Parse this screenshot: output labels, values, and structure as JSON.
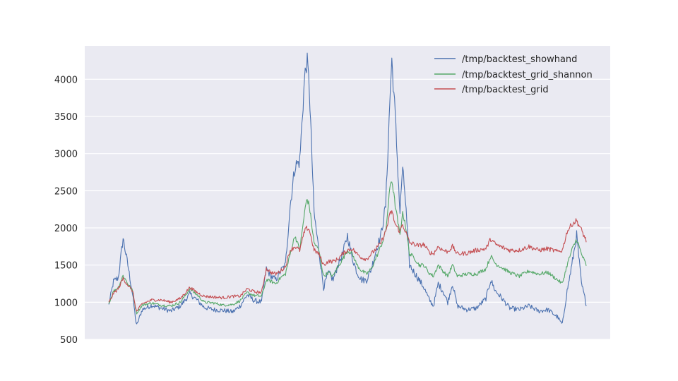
{
  "chart_data": {
    "type": "line",
    "title": "",
    "xlabel": "",
    "ylabel": "",
    "x_range": [
      0,
      1
    ],
    "ylim": [
      500,
      4450
    ],
    "yticks": [
      500,
      1000,
      1500,
      2000,
      2500,
      3000,
      3500,
      4000
    ],
    "ytick_labels": [
      "500",
      "1000",
      "1500",
      "2000",
      "2500",
      "3000",
      "3500",
      "4000"
    ],
    "grid": true,
    "legend_position": "top-right",
    "series": [
      {
        "name": "/tmp/backtest_showhand",
        "color": "#4c72b0",
        "points": [
          [
            0.0,
            960
          ],
          [
            0.01,
            1280
          ],
          [
            0.02,
            1330
          ],
          [
            0.03,
            1860
          ],
          [
            0.04,
            1500
          ],
          [
            0.05,
            1100
          ],
          [
            0.058,
            680
          ],
          [
            0.07,
            900
          ],
          [
            0.09,
            960
          ],
          [
            0.11,
            920
          ],
          [
            0.13,
            880
          ],
          [
            0.15,
            950
          ],
          [
            0.17,
            1110
          ],
          [
            0.185,
            1030
          ],
          [
            0.2,
            930
          ],
          [
            0.22,
            900
          ],
          [
            0.24,
            890
          ],
          [
            0.26,
            870
          ],
          [
            0.275,
            950
          ],
          [
            0.29,
            1100
          ],
          [
            0.305,
            1020
          ],
          [
            0.32,
            1000
          ],
          [
            0.33,
            1450
          ],
          [
            0.34,
            1350
          ],
          [
            0.35,
            1300
          ],
          [
            0.36,
            1420
          ],
          [
            0.37,
            1500
          ],
          [
            0.38,
            2300
          ],
          [
            0.39,
            2830
          ],
          [
            0.4,
            2900
          ],
          [
            0.41,
            4000
          ],
          [
            0.415,
            4260
          ],
          [
            0.42,
            3900
          ],
          [
            0.43,
            2200
          ],
          [
            0.44,
            1700
          ],
          [
            0.45,
            1200
          ],
          [
            0.46,
            1400
          ],
          [
            0.47,
            1300
          ],
          [
            0.48,
            1500
          ],
          [
            0.49,
            1650
          ],
          [
            0.5,
            1900
          ],
          [
            0.51,
            1600
          ],
          [
            0.52,
            1400
          ],
          [
            0.53,
            1300
          ],
          [
            0.54,
            1300
          ],
          [
            0.55,
            1450
          ],
          [
            0.56,
            1700
          ],
          [
            0.57,
            1900
          ],
          [
            0.58,
            2300
          ],
          [
            0.59,
            3900
          ],
          [
            0.593,
            4260
          ],
          [
            0.6,
            3500
          ],
          [
            0.61,
            2200
          ],
          [
            0.615,
            2800
          ],
          [
            0.62,
            2500
          ],
          [
            0.63,
            1500
          ],
          [
            0.64,
            1400
          ],
          [
            0.65,
            1300
          ],
          [
            0.66,
            1200
          ],
          [
            0.67,
            1050
          ],
          [
            0.68,
            950
          ],
          [
            0.69,
            1250
          ],
          [
            0.7,
            1150
          ],
          [
            0.71,
            1000
          ],
          [
            0.72,
            1250
          ],
          [
            0.73,
            950
          ],
          [
            0.75,
            900
          ],
          [
            0.77,
            920
          ],
          [
            0.79,
            1050
          ],
          [
            0.8,
            1300
          ],
          [
            0.81,
            1150
          ],
          [
            0.82,
            1080
          ],
          [
            0.84,
            920
          ],
          [
            0.86,
            900
          ],
          [
            0.88,
            950
          ],
          [
            0.9,
            880
          ],
          [
            0.92,
            900
          ],
          [
            0.94,
            800
          ],
          [
            0.95,
            700
          ],
          [
            0.96,
            1150
          ],
          [
            0.97,
            1500
          ],
          [
            0.98,
            1900
          ],
          [
            0.99,
            1250
          ],
          [
            1.0,
            980
          ]
        ]
      },
      {
        "name": "/tmp/backtest_grid_shannon",
        "color": "#55a868",
        "points": [
          [
            0.0,
            980
          ],
          [
            0.01,
            1150
          ],
          [
            0.02,
            1200
          ],
          [
            0.03,
            1360
          ],
          [
            0.04,
            1250
          ],
          [
            0.05,
            1150
          ],
          [
            0.058,
            850
          ],
          [
            0.07,
            960
          ],
          [
            0.09,
            990
          ],
          [
            0.11,
            960
          ],
          [
            0.13,
            950
          ],
          [
            0.15,
            1000
          ],
          [
            0.17,
            1180
          ],
          [
            0.185,
            1100
          ],
          [
            0.2,
            1000
          ],
          [
            0.22,
            990
          ],
          [
            0.24,
            960
          ],
          [
            0.26,
            970
          ],
          [
            0.275,
            1020
          ],
          [
            0.29,
            1130
          ],
          [
            0.305,
            1090
          ],
          [
            0.32,
            1080
          ],
          [
            0.33,
            1300
          ],
          [
            0.34,
            1280
          ],
          [
            0.35,
            1250
          ],
          [
            0.36,
            1330
          ],
          [
            0.37,
            1380
          ],
          [
            0.38,
            1650
          ],
          [
            0.39,
            1900
          ],
          [
            0.4,
            1700
          ],
          [
            0.41,
            2200
          ],
          [
            0.415,
            2400
          ],
          [
            0.42,
            2300
          ],
          [
            0.43,
            1800
          ],
          [
            0.44,
            1700
          ],
          [
            0.45,
            1350
          ],
          [
            0.46,
            1400
          ],
          [
            0.47,
            1350
          ],
          [
            0.48,
            1480
          ],
          [
            0.49,
            1580
          ],
          [
            0.5,
            1700
          ],
          [
            0.51,
            1650
          ],
          [
            0.52,
            1500
          ],
          [
            0.53,
            1420
          ],
          [
            0.54,
            1380
          ],
          [
            0.55,
            1450
          ],
          [
            0.56,
            1600
          ],
          [
            0.57,
            1750
          ],
          [
            0.58,
            1950
          ],
          [
            0.59,
            2600
          ],
          [
            0.593,
            2650
          ],
          [
            0.6,
            2300
          ],
          [
            0.61,
            1900
          ],
          [
            0.615,
            2200
          ],
          [
            0.62,
            2100
          ],
          [
            0.63,
            1650
          ],
          [
            0.64,
            1600
          ],
          [
            0.65,
            1500
          ],
          [
            0.66,
            1500
          ],
          [
            0.67,
            1400
          ],
          [
            0.68,
            1350
          ],
          [
            0.69,
            1500
          ],
          [
            0.7,
            1420
          ],
          [
            0.71,
            1350
          ],
          [
            0.72,
            1500
          ],
          [
            0.73,
            1350
          ],
          [
            0.75,
            1380
          ],
          [
            0.77,
            1380
          ],
          [
            0.79,
            1450
          ],
          [
            0.8,
            1620
          ],
          [
            0.81,
            1520
          ],
          [
            0.82,
            1480
          ],
          [
            0.84,
            1400
          ],
          [
            0.86,
            1350
          ],
          [
            0.88,
            1420
          ],
          [
            0.9,
            1380
          ],
          [
            0.92,
            1400
          ],
          [
            0.94,
            1300
          ],
          [
            0.95,
            1250
          ],
          [
            0.96,
            1500
          ],
          [
            0.97,
            1700
          ],
          [
            0.98,
            1850
          ],
          [
            0.99,
            1650
          ],
          [
            1.0,
            1500
          ]
        ]
      },
      {
        "name": "/tmp/backtest_grid",
        "color": "#c44e52",
        "points": [
          [
            0.0,
            990
          ],
          [
            0.01,
            1120
          ],
          [
            0.02,
            1180
          ],
          [
            0.03,
            1320
          ],
          [
            0.04,
            1230
          ],
          [
            0.05,
            1150
          ],
          [
            0.058,
            870
          ],
          [
            0.07,
            980
          ],
          [
            0.09,
            1030
          ],
          [
            0.11,
            1030
          ],
          [
            0.13,
            1000
          ],
          [
            0.15,
            1050
          ],
          [
            0.17,
            1200
          ],
          [
            0.185,
            1130
          ],
          [
            0.2,
            1080
          ],
          [
            0.22,
            1070
          ],
          [
            0.24,
            1060
          ],
          [
            0.26,
            1080
          ],
          [
            0.275,
            1080
          ],
          [
            0.29,
            1180
          ],
          [
            0.305,
            1140
          ],
          [
            0.32,
            1130
          ],
          [
            0.33,
            1450
          ],
          [
            0.34,
            1400
          ],
          [
            0.35,
            1380
          ],
          [
            0.36,
            1420
          ],
          [
            0.37,
            1480
          ],
          [
            0.38,
            1700
          ],
          [
            0.39,
            1750
          ],
          [
            0.4,
            1700
          ],
          [
            0.41,
            1950
          ],
          [
            0.415,
            2000
          ],
          [
            0.42,
            1980
          ],
          [
            0.43,
            1700
          ],
          [
            0.44,
            1650
          ],
          [
            0.45,
            1500
          ],
          [
            0.46,
            1550
          ],
          [
            0.47,
            1550
          ],
          [
            0.48,
            1580
          ],
          [
            0.49,
            1650
          ],
          [
            0.5,
            1700
          ],
          [
            0.51,
            1720
          ],
          [
            0.52,
            1650
          ],
          [
            0.53,
            1600
          ],
          [
            0.54,
            1580
          ],
          [
            0.55,
            1650
          ],
          [
            0.56,
            1720
          ],
          [
            0.57,
            1800
          ],
          [
            0.58,
            1950
          ],
          [
            0.59,
            2200
          ],
          [
            0.593,
            2220
          ],
          [
            0.6,
            2050
          ],
          [
            0.61,
            1950
          ],
          [
            0.615,
            2050
          ],
          [
            0.62,
            1980
          ],
          [
            0.63,
            1800
          ],
          [
            0.64,
            1780
          ],
          [
            0.65,
            1760
          ],
          [
            0.66,
            1780
          ],
          [
            0.67,
            1680
          ],
          [
            0.68,
            1650
          ],
          [
            0.69,
            1750
          ],
          [
            0.7,
            1700
          ],
          [
            0.71,
            1680
          ],
          [
            0.72,
            1750
          ],
          [
            0.73,
            1650
          ],
          [
            0.75,
            1660
          ],
          [
            0.77,
            1700
          ],
          [
            0.79,
            1720
          ],
          [
            0.8,
            1850
          ],
          [
            0.81,
            1780
          ],
          [
            0.82,
            1750
          ],
          [
            0.84,
            1700
          ],
          [
            0.86,
            1700
          ],
          [
            0.88,
            1750
          ],
          [
            0.9,
            1700
          ],
          [
            0.92,
            1720
          ],
          [
            0.94,
            1680
          ],
          [
            0.95,
            1700
          ],
          [
            0.96,
            1950
          ],
          [
            0.97,
            2050
          ],
          [
            0.98,
            2100
          ],
          [
            0.99,
            1970
          ],
          [
            1.0,
            1830
          ]
        ]
      }
    ]
  }
}
